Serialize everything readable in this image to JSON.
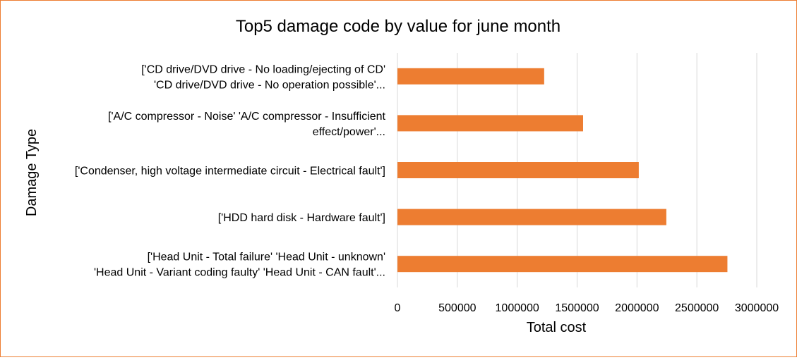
{
  "chart_data": {
    "type": "bar",
    "orientation": "horizontal",
    "title": "Top5 damage code by value for june month",
    "xlabel": "Total cost",
    "ylabel": "Damage Type",
    "xlim": [
      0,
      3000000
    ],
    "xticks": [
      "0",
      "500000",
      "1000000",
      "1500000",
      "2000000",
      "2500000",
      "3000000"
    ],
    "grid": "vertical",
    "legend": "none",
    "bar_color": "#ED7D31",
    "border_color": "#ED7D31",
    "categories": [
      [
        "['CD drive/DVD drive - No loading/ejecting of CD'",
        "'CD drive/DVD drive - No operation possible'..."
      ],
      [
        "['A/C compressor - Noise' 'A/C compressor - Insufficient",
        "effect/power'..."
      ],
      [
        "['Condenser, high voltage intermediate circuit - Electrical fault']"
      ],
      [
        "['HDD hard disk - Hardware fault']"
      ],
      [
        "['Head Unit - Total failure' 'Head Unit - unknown'",
        "'Head Unit - Variant coding faulty' 'Head Unit - CAN fault'..."
      ]
    ],
    "values": [
      1225000,
      1550000,
      2015000,
      2245000,
      2755000
    ]
  }
}
